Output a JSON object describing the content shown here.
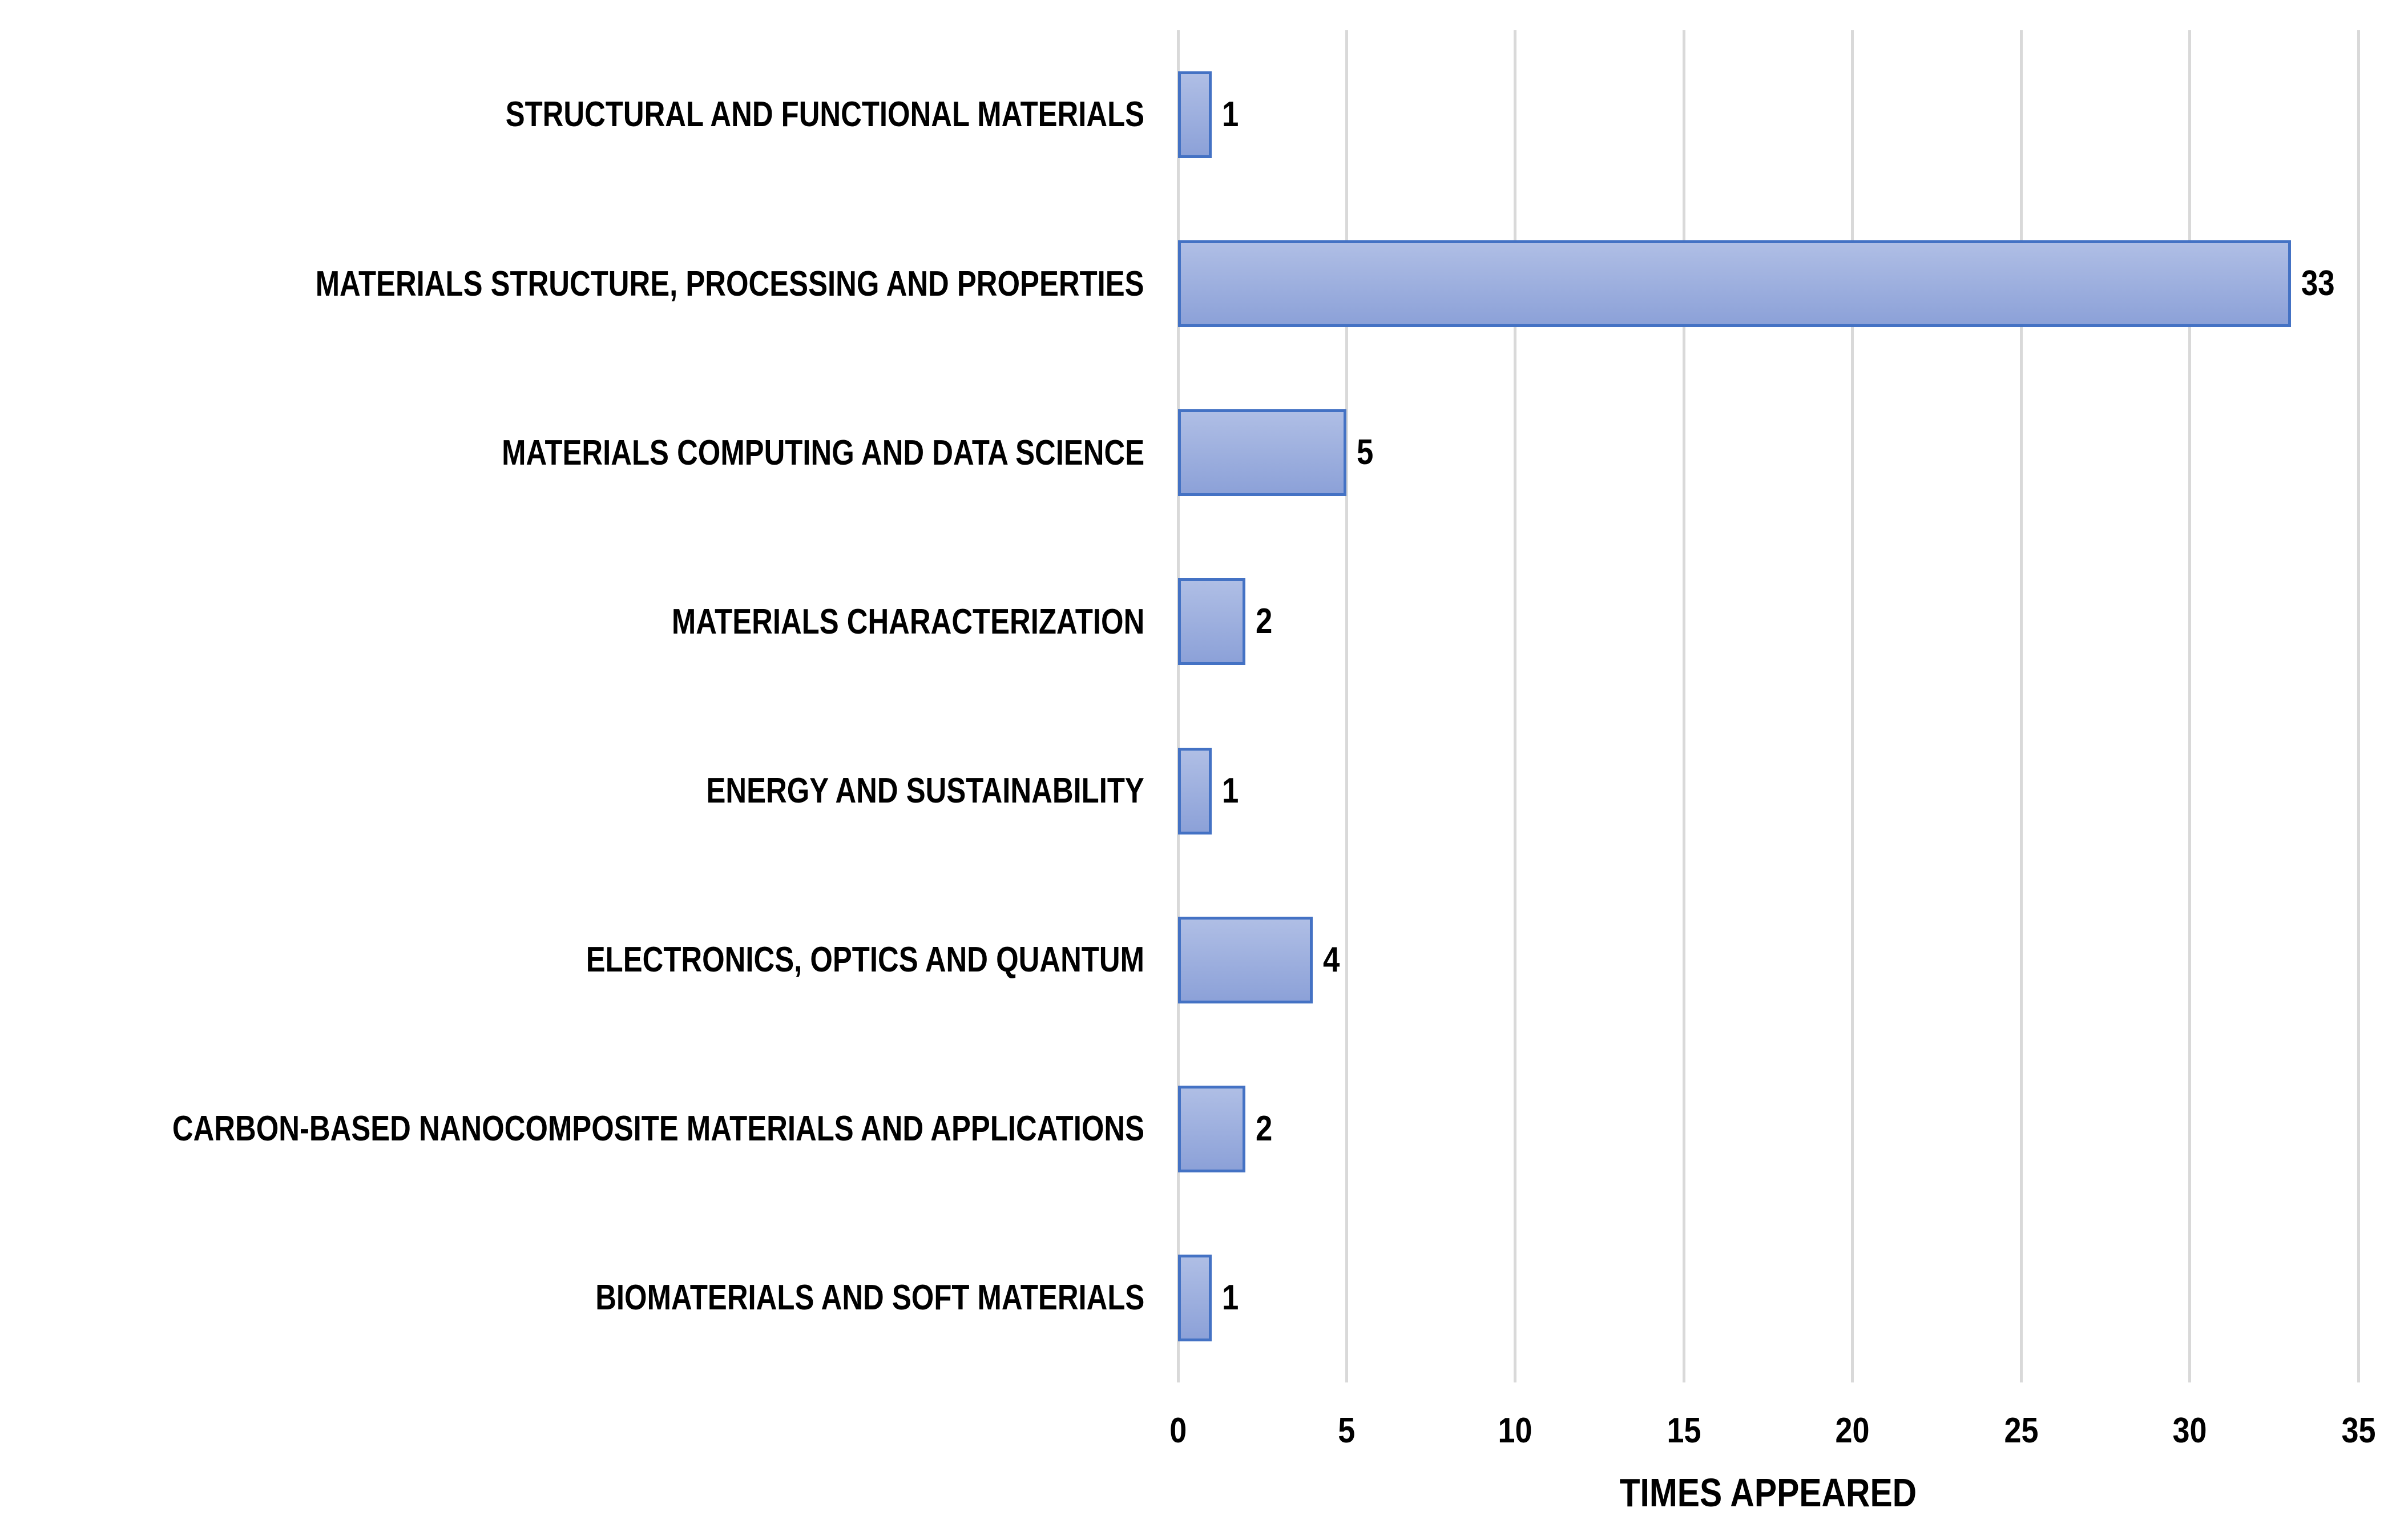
{
  "chart_data": {
    "type": "bar",
    "orientation": "horizontal",
    "title": "",
    "xlabel": "TIMES APPEARED",
    "ylabel": "",
    "categories": [
      "STRUCTURAL AND FUNCTIONAL MATERIALS",
      "MATERIALS STRUCTURE, PROCESSING AND PROPERTIES",
      "MATERIALS COMPUTING AND DATA SCIENCE",
      "MATERIALS CHARACTERIZATION",
      "ENERGY AND SUSTAINABILITY",
      "ELECTRONICS, OPTICS AND QUANTUM",
      "CARBON-BASED NANOCOMPOSITE MATERIALS AND APPLICATIONS",
      "BIOMATERIALS AND SOFT MATERIALS"
    ],
    "values": [
      1,
      33,
      5,
      2,
      1,
      4,
      2,
      1
    ],
    "data_labels": [
      "1",
      "33",
      "5",
      "2",
      "1",
      "4",
      "2",
      "1"
    ],
    "xlim": [
      0,
      35
    ],
    "xticks": [
      "0",
      "5",
      "10",
      "15",
      "20",
      "25",
      "30",
      "35"
    ],
    "grid": "vertical-major",
    "legend": false,
    "colors": {
      "bar_fill_top": "#AFBEE5",
      "bar_fill_bottom": "#8CA1D8",
      "bar_border": "#4472C4",
      "gridline": "#D9D9D9",
      "text": "#000000",
      "background": "#FFFFFF"
    }
  }
}
